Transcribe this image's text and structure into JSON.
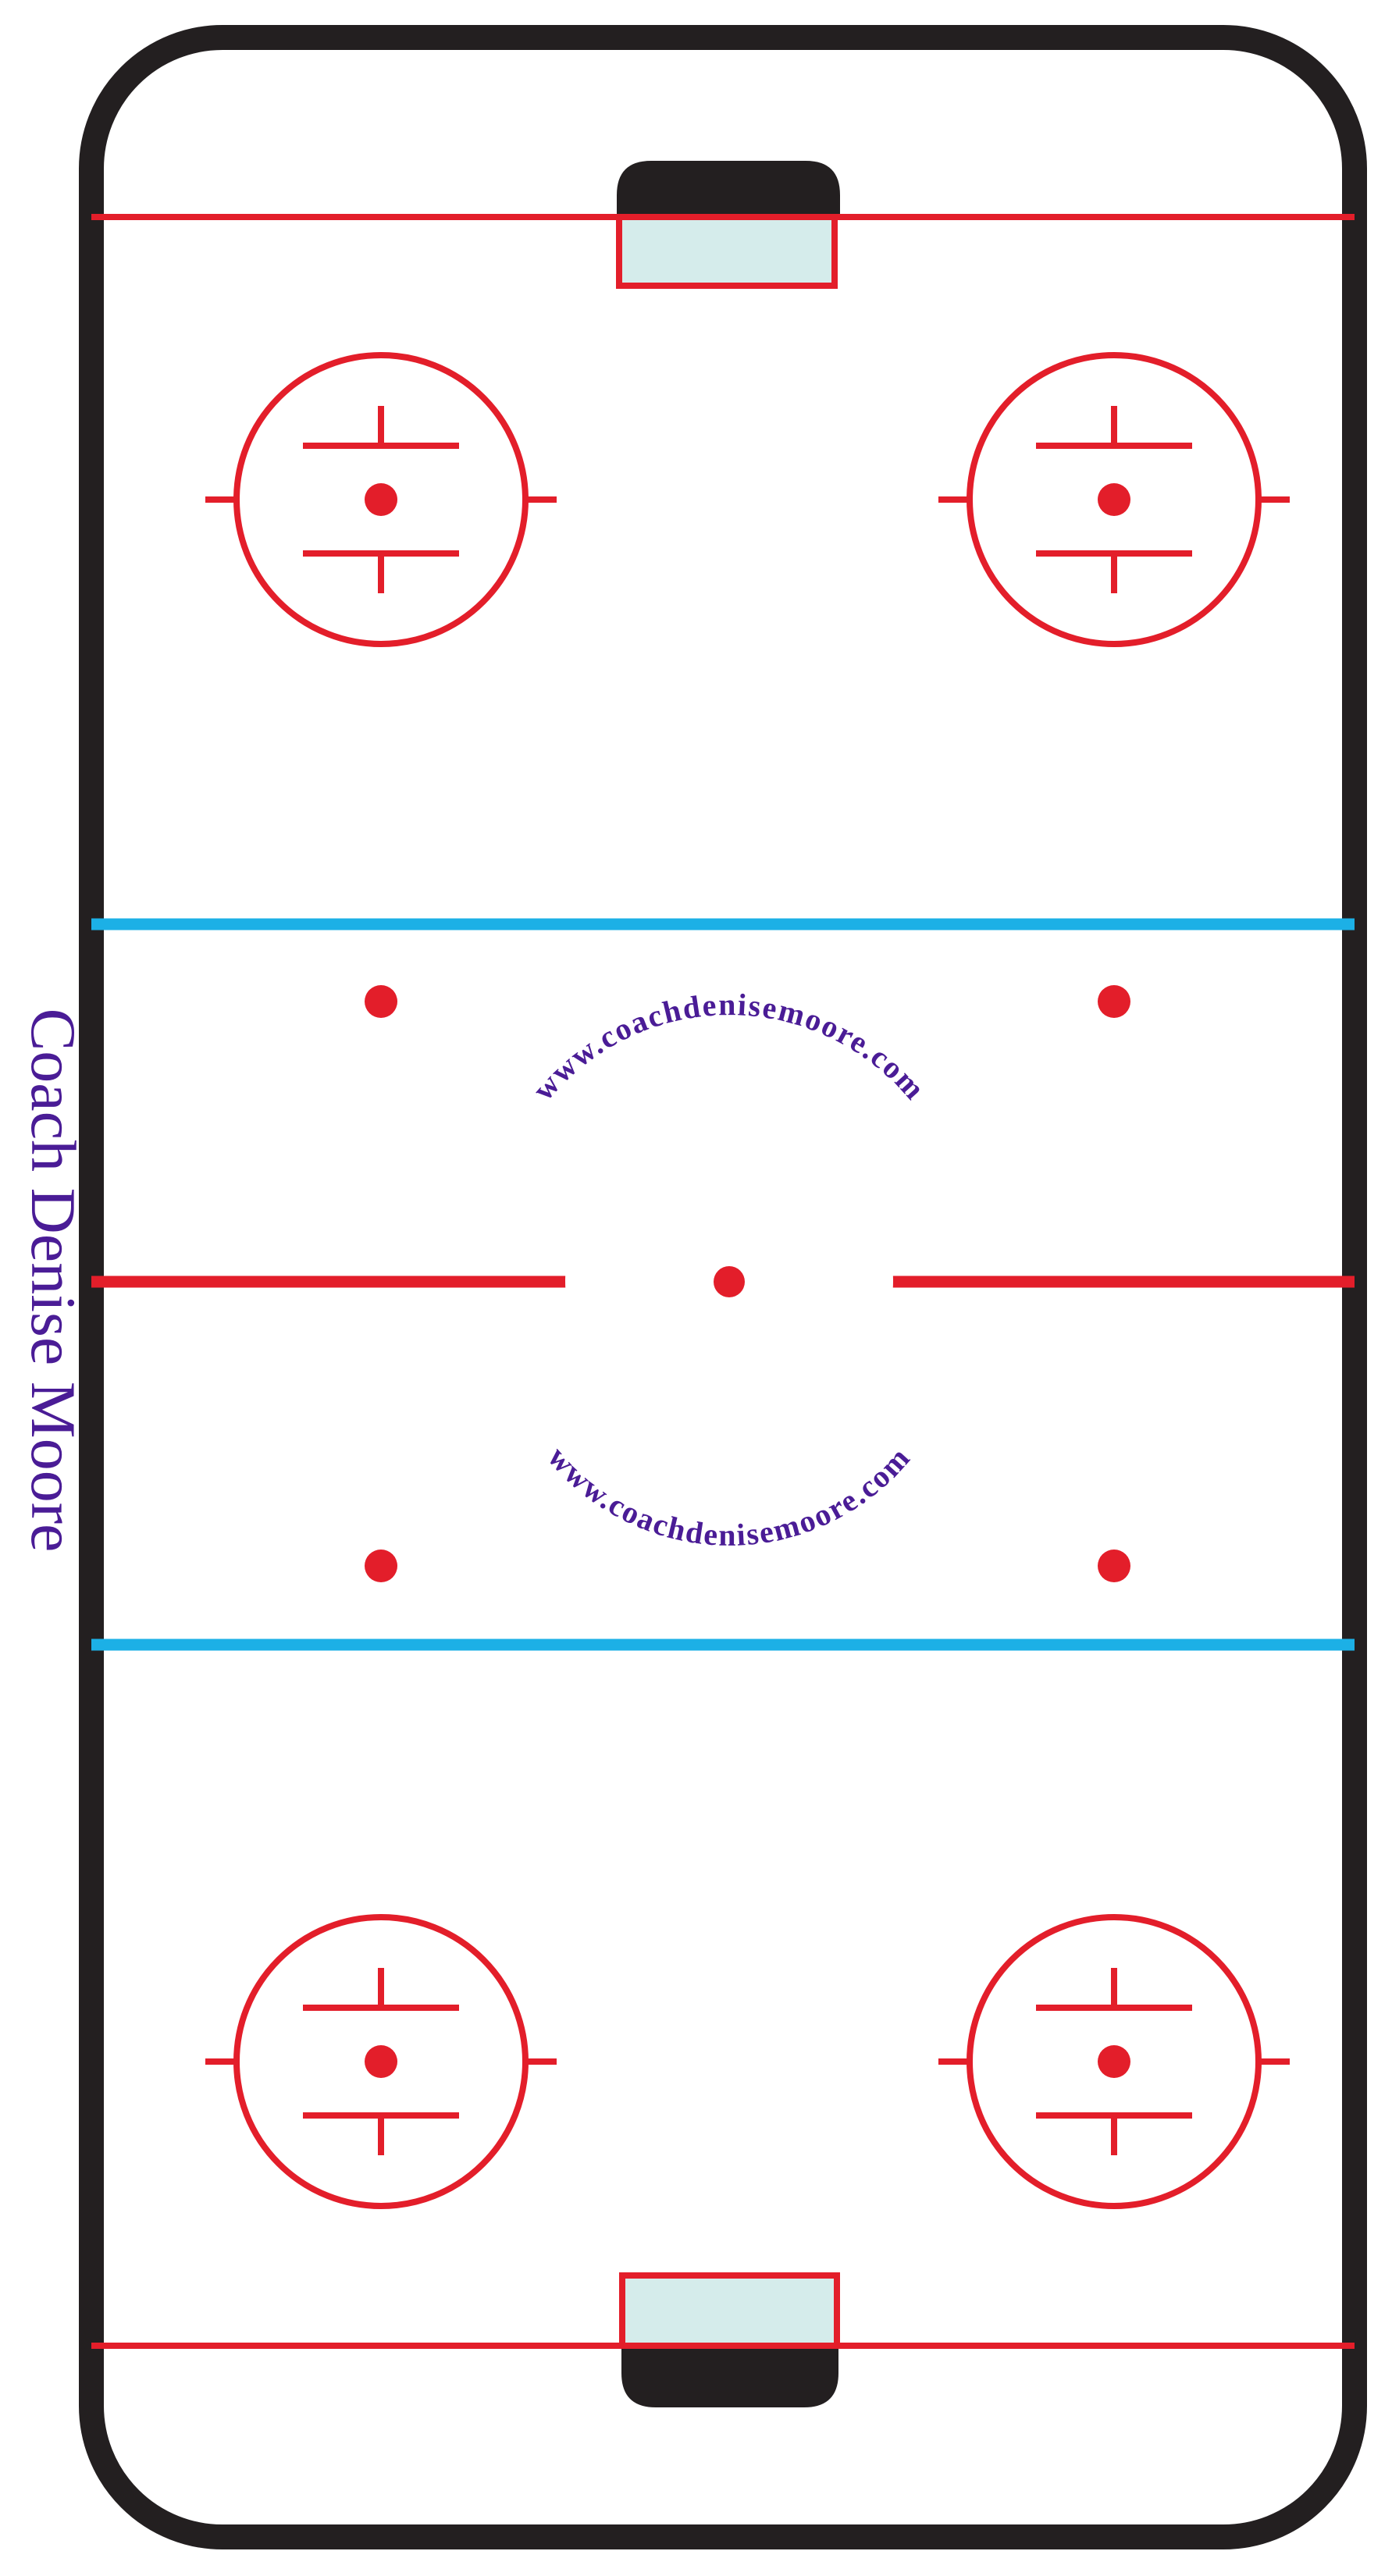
{
  "side_label": "Coach Denise Moore",
  "center_text_top": "www.coachdenisemoore.com",
  "center_text_bottom": "www.coachdenisemoore.com",
  "colors": {
    "board": "#231f20",
    "red_line": "#e31e2a",
    "blue_line": "#1cb0e6",
    "crease": "#d5eceb",
    "ice": "#ffffff",
    "text": "#4a1c96"
  },
  "icons": {
    "faceoff_circle": "faceoff-circle-icon",
    "faceoff_dot": "faceoff-dot-icon",
    "goal_net": "goal-net-icon"
  }
}
